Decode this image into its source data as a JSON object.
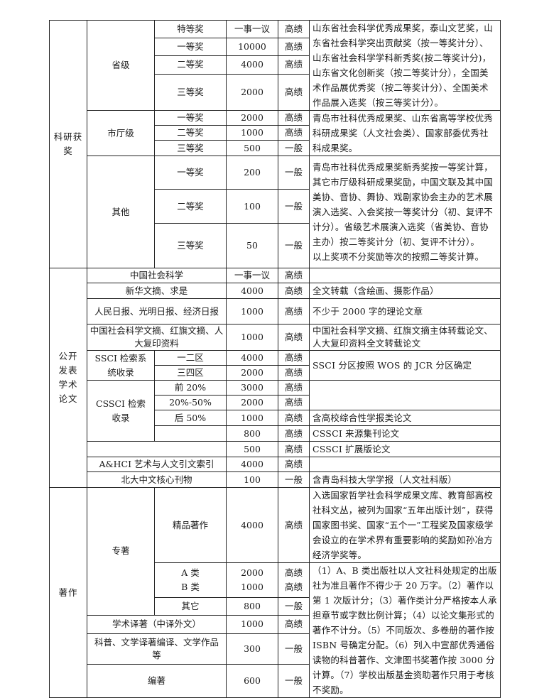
{
  "research_awards": {
    "category": "科研获奖",
    "provincial": {
      "level": "省级",
      "rows": [
        {
          "grade": "特等奖",
          "score": "一事一议",
          "type": "高绩"
        },
        {
          "grade": "一等奖",
          "score": "10000",
          "type": "高绩"
        },
        {
          "grade": "二等奖",
          "score": "4000",
          "type": "高绩"
        },
        {
          "grade": "三等奖",
          "score": "2000",
          "type": "高绩"
        }
      ],
      "note": "山东省社会科学优秀成果奖，泰山文艺奖，山东省社会科学突出贡献奖（按一等奖计分）、山东省社会科学学科新秀奖(按二等奖计分)，山东省文化创新奖（按二等奖计分），全国美术作品展优秀奖（按二等奖计分）、全国美术作品展入选奖（按三等奖计分）。"
    },
    "municipal": {
      "level": "市厅级",
      "rows": [
        {
          "grade": "一等奖",
          "score": "2000",
          "type": "高绩"
        },
        {
          "grade": "二等奖",
          "score": "1000",
          "type": "高绩"
        },
        {
          "grade": "三等奖",
          "score": "500",
          "type": "一般"
        }
      ],
      "note": "青岛市社科优秀成果奖、山东省高等学校优秀科研成果奖（人文社会类）、国家部委优秀社科成果奖。"
    },
    "other": {
      "level": "其他",
      "rows": [
        {
          "grade": "一等奖",
          "score": "200",
          "type": "一般"
        },
        {
          "grade": "二等奖",
          "score": "100",
          "type": "一般"
        },
        {
          "grade": "三等奖",
          "score": "50",
          "type": "一般"
        }
      ],
      "note": "青岛市社科优秀成果奖新秀奖按一等奖计算，其它市厅级科研成果奖励，中国文联及其中国美协、音协、舞协、戏剧家协会主办的艺术展演入选奖、入会奖按一等奖计分（初、复评不计分）。省级艺术展演入选奖（省美协、音协主办）按二等奖计分（初、复评不计分）。",
      "note2": "以上奖项不分奖励等次的按照二等奖计算。"
    }
  },
  "papers": {
    "category": "公开发表学术论文",
    "rows": [
      {
        "name": "中国社会科学",
        "score": "一事一议",
        "type": "高绩",
        "note": ""
      },
      {
        "name": "新华文摘、求是",
        "score": "4000",
        "type": "高绩",
        "note": "全文转载（含绘画、摄影作品）"
      },
      {
        "name": "人民日报、光明日报、经济日报",
        "score": "1000",
        "type": "高绩",
        "note": "不少于 2000 字的理论文章"
      },
      {
        "name": "中国社会科学文摘、红旗文摘、人大复印资料",
        "score": "1000",
        "type": "高绩",
        "note": "中国社会科学文摘、红旗文摘主体转载论文、人大复印资料全文转载论文"
      }
    ],
    "ssci": {
      "name": "SSCI 检索系统收录",
      "rows": [
        {
          "sub": "一二区",
          "score": "4000",
          "type": "高绩"
        },
        {
          "sub": "三四区",
          "score": "2000",
          "type": "高绩"
        }
      ],
      "note": "SSCI 分区按照 WOS 的 JCR 分区确定"
    },
    "cssci": {
      "name": "CSSCI 检索收录",
      "rows": [
        {
          "sub": "前 20%",
          "score": "3000",
          "type": "高绩"
        },
        {
          "sub": "20%-50%",
          "score": "2000",
          "type": "高绩"
        },
        {
          "sub": "后 50%",
          "score": "1000",
          "type": "高绩",
          "note": "含高校综合性学报类论文"
        },
        {
          "sub": "",
          "score": "800",
          "type": "高绩",
          "note": "CSSCI 来源集刊论文"
        }
      ]
    },
    "extended": {
      "name": "",
      "score": "500",
      "type": "高绩",
      "note": "CSSCI 扩展版论文"
    },
    "ahci": {
      "name": "A&HCI 艺术与人文引文索引",
      "score": "4000",
      "type": "高绩",
      "note": ""
    },
    "pku": {
      "name": "北大中文核心刊物",
      "score": "100",
      "type": "一般",
      "note": "含青岛科技大学学报（人文社科版）"
    }
  },
  "works": {
    "category": "著作",
    "monograph": {
      "name": "专著",
      "premium": {
        "sub": "精品著作",
        "score": "4000",
        "type": "高绩",
        "note": "入选国家哲学社会科学成果文库、教育部高校社科文丛，被列为国家“五年出版计划”，获得国家图书奖、国家“五个一”工程奖及国家级学会设立的在学术界有重要影响的奖励如孙冶方经济学奖等。"
      },
      "a": {
        "sub": "A 类",
        "score": "2000",
        "type": "高绩"
      },
      "b": {
        "sub": "B 类",
        "score": "1000",
        "type": "高绩"
      },
      "other": {
        "sub": "其它",
        "score": "800",
        "type": "一般"
      }
    },
    "translation": {
      "name": "学术译著（中译外文）",
      "score": "1000",
      "type": "高绩"
    },
    "popular": {
      "name": "科普、文学译著编译、文学作品等",
      "score": "300",
      "type": "一般"
    },
    "compiled": {
      "name": "编著",
      "score": "600",
      "type": "一般"
    },
    "note": "（1）A、B 类出版社以人文社科处规定的出版社为准且著作不得少于 20 万字。（2）著作以第 1 次版计分；（3）著作类计分严格按本人承担章节或字数比例计算；（4）以论文集形式的著作不计分。（5）不同版次、多卷册的著作按 ISBN 号确定分配。（6）列入中宣部优秀通俗读物的科普著作、文津图书奖著作按 3000 分计算。（7）学校出版基金资助著作只用于考核不奖励。"
  }
}
